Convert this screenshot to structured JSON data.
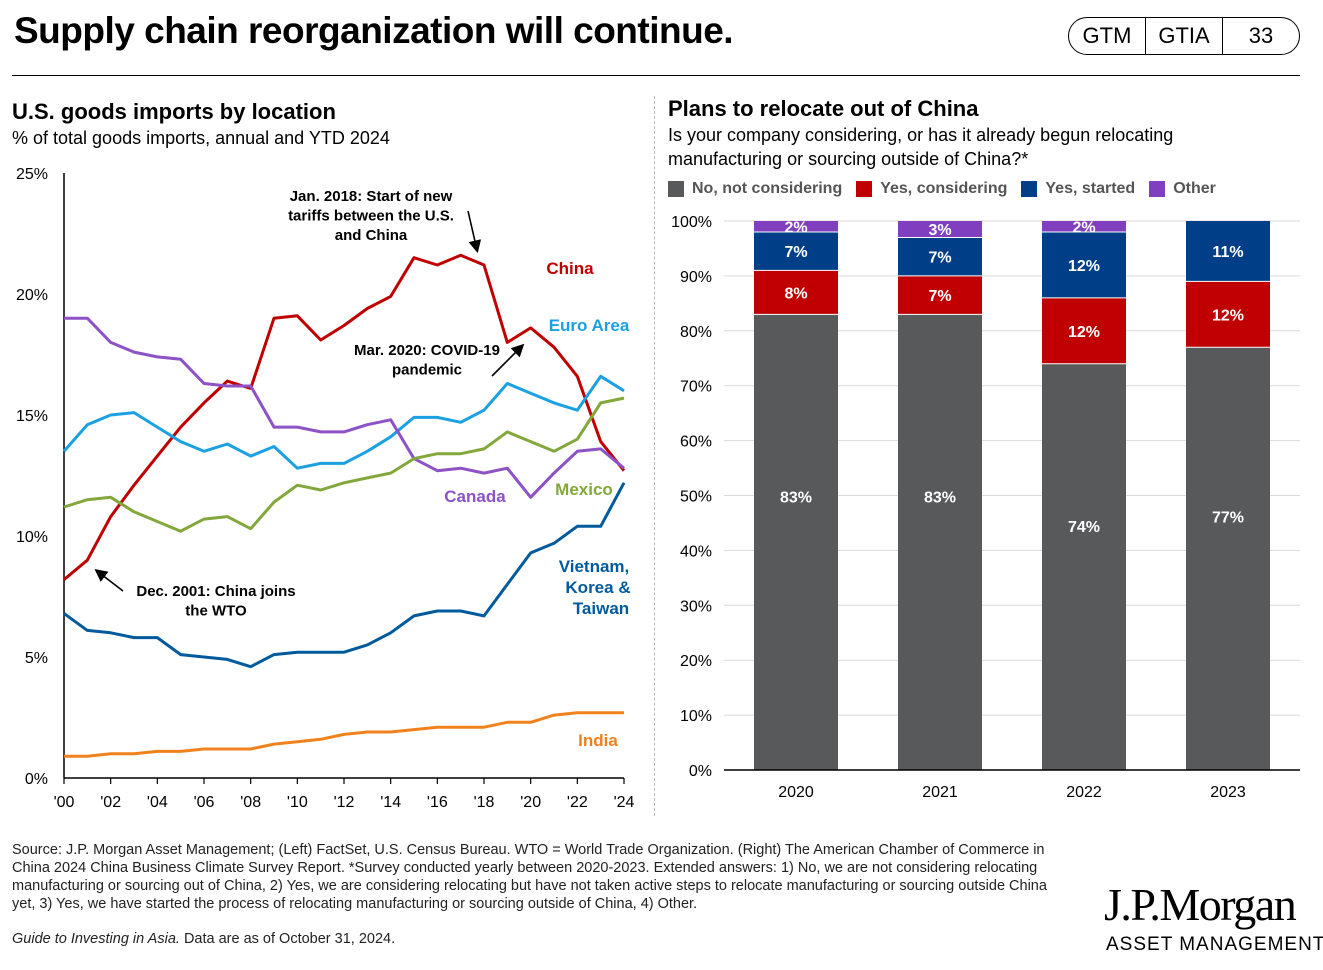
{
  "header": {
    "title": "Supply chain reorganization will continue.",
    "badges": [
      "GTM",
      "GTIA",
      "33"
    ]
  },
  "left_panel": {
    "title": "U.S. goods imports by location",
    "subtitle": "% of total goods imports, annual and YTD 2024"
  },
  "right_panel": {
    "title": "Plans to relocate out of China",
    "subtitle_line1": "Is your company considering, or has it already begun relocating",
    "subtitle_line2": "manufacturing or sourcing outside of China?*"
  },
  "chart_data": [
    {
      "type": "line",
      "ylim": [
        0,
        25
      ],
      "xlim": [
        2000,
        2024
      ],
      "y_ticks": [
        {
          "value": 0,
          "label": "0%"
        },
        {
          "value": 5,
          "label": "5%"
        },
        {
          "value": 10,
          "label": "10%"
        },
        {
          "value": 15,
          "label": "15%"
        },
        {
          "value": 20,
          "label": "20%"
        },
        {
          "value": 25,
          "label": "25%"
        }
      ],
      "x_ticks": [
        {
          "value": 2000,
          "label": "'00"
        },
        {
          "value": 2002,
          "label": "'02"
        },
        {
          "value": 2004,
          "label": "'04"
        },
        {
          "value": 2006,
          "label": "'06"
        },
        {
          "value": 2008,
          "label": "'08"
        },
        {
          "value": 2010,
          "label": "'10"
        },
        {
          "value": 2012,
          "label": "'12"
        },
        {
          "value": 2014,
          "label": "'14"
        },
        {
          "value": 2016,
          "label": "'16"
        },
        {
          "value": 2018,
          "label": "'18"
        },
        {
          "value": 2020,
          "label": "'20"
        },
        {
          "value": 2022,
          "label": "'22"
        },
        {
          "value": 2024,
          "label": "'24"
        }
      ],
      "x": [
        2000,
        2001,
        2002,
        2003,
        2004,
        2005,
        2006,
        2007,
        2008,
        2009,
        2010,
        2011,
        2012,
        2013,
        2014,
        2015,
        2016,
        2017,
        2018,
        2019,
        2020,
        2021,
        2022,
        2023,
        2024
      ],
      "series": [
        {
          "name": "China",
          "color": "#c00000",
          "values": [
            8.2,
            9.0,
            10.8,
            12.1,
            13.3,
            14.5,
            15.5,
            16.4,
            16.1,
            19.0,
            19.1,
            18.1,
            18.7,
            19.4,
            19.9,
            21.5,
            21.2,
            21.6,
            21.2,
            18.0,
            18.6,
            17.8,
            16.6,
            13.9,
            12.7
          ]
        },
        {
          "name": "Euro Area",
          "color": "#1ba1e2",
          "values": [
            13.5,
            14.6,
            15.0,
            15.1,
            14.5,
            13.9,
            13.5,
            13.8,
            13.3,
            13.7,
            12.8,
            13.0,
            13.0,
            13.5,
            14.1,
            14.9,
            14.9,
            14.7,
            15.2,
            16.3,
            15.9,
            15.5,
            15.2,
            16.6,
            16.0
          ]
        },
        {
          "name": "Canada",
          "color": "#8c52c6",
          "values": [
            19.0,
            19.0,
            18.0,
            17.6,
            17.4,
            17.3,
            16.3,
            16.2,
            16.2,
            14.5,
            14.5,
            14.3,
            14.3,
            14.6,
            14.8,
            13.2,
            12.7,
            12.8,
            12.6,
            12.8,
            11.6,
            12.6,
            13.5,
            13.6,
            12.8
          ]
        },
        {
          "name": "Mexico",
          "color": "#82a83c",
          "values": [
            11.2,
            11.5,
            11.6,
            11.0,
            10.6,
            10.2,
            10.7,
            10.8,
            10.3,
            11.4,
            12.1,
            11.9,
            12.2,
            12.4,
            12.6,
            13.2,
            13.4,
            13.4,
            13.6,
            14.3,
            13.9,
            13.5,
            14.0,
            15.5,
            15.7
          ]
        },
        {
          "name": "Vietnam, Korea & Taiwan",
          "color": "#005a9c",
          "values": [
            6.8,
            6.1,
            6.0,
            5.8,
            5.8,
            5.1,
            5.0,
            4.9,
            4.6,
            5.1,
            5.2,
            5.2,
            5.2,
            5.5,
            6.0,
            6.7,
            6.9,
            6.9,
            6.7,
            8.0,
            9.3,
            9.7,
            10.4,
            10.4,
            12.2
          ]
        },
        {
          "name": "India",
          "color": "#f0821e",
          "values": [
            0.9,
            0.9,
            1.0,
            1.0,
            1.1,
            1.1,
            1.2,
            1.2,
            1.2,
            1.4,
            1.5,
            1.6,
            1.8,
            1.9,
            1.9,
            2.0,
            2.1,
            2.1,
            2.1,
            2.3,
            2.3,
            2.6,
            2.7,
            2.7,
            2.7
          ]
        }
      ],
      "series_labels": [
        "China",
        "Euro Area",
        "Canada",
        "Mexico",
        "Vietnam,",
        "Korea &",
        "Taiwan",
        "India"
      ],
      "annotations": [
        {
          "lines": [
            "Jan. 2018: Start of new",
            "tariffs between the U.S.",
            "and China"
          ]
        },
        {
          "lines": [
            "Mar. 2020: COVID-19",
            "pandemic"
          ]
        },
        {
          "lines": [
            "Dec. 2001: China joins",
            "the WTO"
          ]
        }
      ]
    },
    {
      "type": "bar",
      "stacked": true,
      "ylim": [
        0,
        100
      ],
      "y_ticks": [
        "0%",
        "10%",
        "20%",
        "30%",
        "40%",
        "50%",
        "60%",
        "70%",
        "80%",
        "90%",
        "100%"
      ],
      "categories": [
        "2020",
        "2021",
        "2022",
        "2023"
      ],
      "series": [
        {
          "name": "No, not considering",
          "color": "#58595b",
          "values": [
            83,
            83,
            74,
            77
          ],
          "labels": [
            "83%",
            "83%",
            "74%",
            "77%"
          ]
        },
        {
          "name": "Yes, considering",
          "color": "#c00000",
          "values": [
            8,
            7,
            12,
            12
          ],
          "labels": [
            "8%",
            "7%",
            "12%",
            "12%"
          ]
        },
        {
          "name": "Yes, started",
          "color": "#003f87",
          "values": [
            7,
            7,
            12,
            11
          ],
          "labels": [
            "7%",
            "7%",
            "12%",
            "11%"
          ]
        },
        {
          "name": "Other",
          "color": "#7f3fbf",
          "values": [
            2,
            3,
            2,
            0
          ],
          "labels": [
            "2%",
            "3%",
            "2%",
            ""
          ]
        }
      ]
    }
  ],
  "footnote": {
    "source": "Source: J.P. Morgan Asset Management; (Left) FactSet, U.S. Census Bureau. WTO = World Trade Organization. (Right) The American Chamber of Commerce in China 2024 China Business Climate Survey Report. *Survey conducted yearly between 2020-2023. Extended answers: 1) No, we are not considering relocating manufacturing or sourcing out of China, 2) Yes, we are considering relocating but have not taken active steps to relocate manufacturing or sourcing outside China yet, 3) Yes, we have started the process of relocating manufacturing or sourcing outside of China, 4) Other.",
    "guide_italic": "Guide to Investing in Asia.",
    "as_of": " Data are as of October 31, 2024."
  },
  "brand": {
    "name": "J.P.Morgan",
    "subtitle": "ASSET MANAGEMENT"
  }
}
